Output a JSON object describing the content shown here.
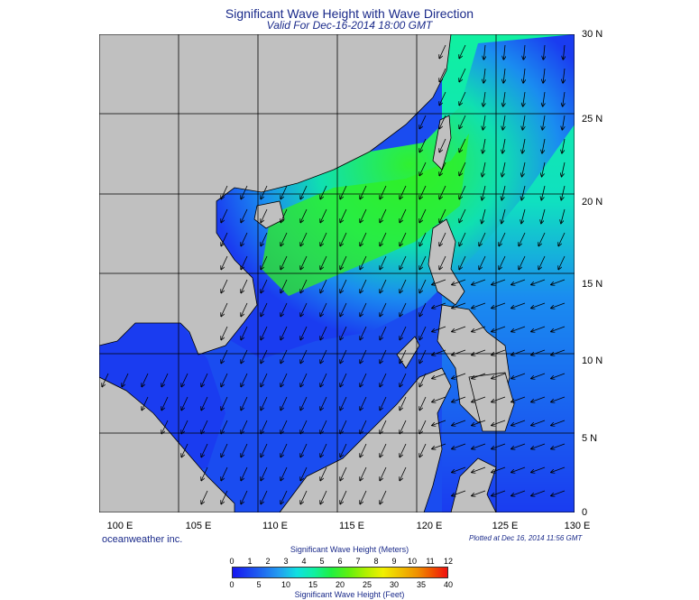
{
  "title": "Significant Wave Height with Wave Direction",
  "subtitle": "Valid For Dec-16-2014 18:00 GMT",
  "lon_labels": [
    "100 E",
    "105 E",
    "110 E",
    "115 E",
    "120 E",
    "125 E",
    "130 E"
  ],
  "lat_labels": [
    "30 N",
    "25 N",
    "20 N",
    "15 N",
    "10 N",
    "5 N",
    "0"
  ],
  "credit": "oceanweather inc.",
  "plotted": "Plotted at Dec 16, 2014 11:56 GMT",
  "colorbar": {
    "meters_title": "Significant Wave Height (Meters)",
    "feet_title": "Significant Wave Height (Feet)",
    "meters_ticks": [
      "0",
      "1",
      "2",
      "3",
      "4",
      "5",
      "6",
      "7",
      "8",
      "9",
      "10",
      "11",
      "12"
    ],
    "feet_ticks": [
      "0",
      "5",
      "10",
      "15",
      "20",
      "25",
      "30",
      "35",
      "40"
    ]
  },
  "colors": {
    "land": "#c0c0c0",
    "low_wave": "#1a3cf0",
    "mid_wave": "#10e0c0",
    "high_wave": "#30f020",
    "title_text": "#1a2a8a"
  }
}
